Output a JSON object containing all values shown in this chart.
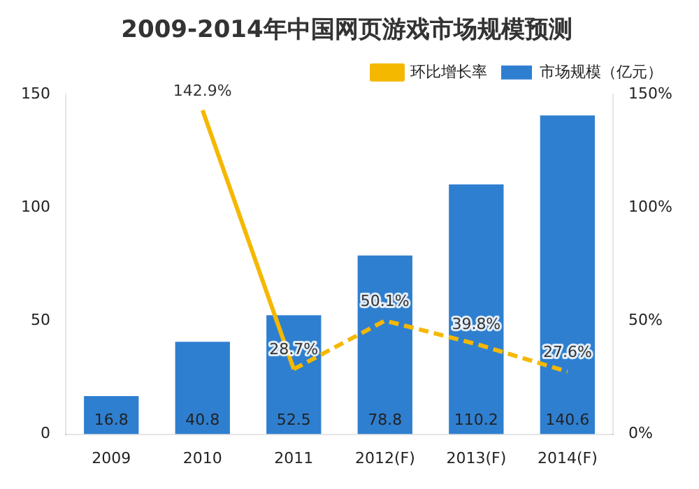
{
  "chart_data": {
    "type": "bar",
    "title": "2009-2014年中国网页游戏市场规模预测",
    "categories": [
      "2009",
      "2010",
      "2011",
      "2012(F)",
      "2013(F)",
      "2014(F)"
    ],
    "series": [
      {
        "name": "市场规模（亿元）",
        "color": "#2f7fd0",
        "values": [
          16.8,
          40.8,
          52.5,
          78.8,
          110.2,
          140.6
        ],
        "value_labels": [
          "16.8",
          "40.8",
          "52.5",
          "78.8",
          "110.2",
          "140.6"
        ]
      },
      {
        "name": "环比增长率",
        "type": "line",
        "axis": "y2",
        "color": "#f5b800",
        "line_style": "solid",
        "values": [
          null,
          142.9,
          28.7,
          null,
          null,
          null
        ],
        "value_labels": [
          null,
          "142.9%",
          "28.7%",
          null,
          null,
          null
        ]
      },
      {
        "type": "line",
        "axis": "y2",
        "color": "#f5b800",
        "line_style": "dashed",
        "values": [
          null,
          null,
          28.7,
          50.1,
          39.8,
          27.6
        ],
        "value_labels": [
          null,
          null,
          null,
          "50.1%",
          "39.8%",
          "27.6%"
        ]
      }
    ],
    "ylim": [
      0,
      150
    ],
    "yticks": [
      0,
      50,
      100,
      150
    ],
    "y2lim": [
      0,
      150
    ],
    "y2ticks": [
      {
        "value": 0,
        "label": "0%"
      },
      {
        "value": 50,
        "label": "50%"
      },
      {
        "value": 100,
        "label": "100%"
      },
      {
        "value": 150,
        "label": "150%"
      }
    ],
    "legend": "top right",
    "grid": false,
    "marker": "none"
  }
}
